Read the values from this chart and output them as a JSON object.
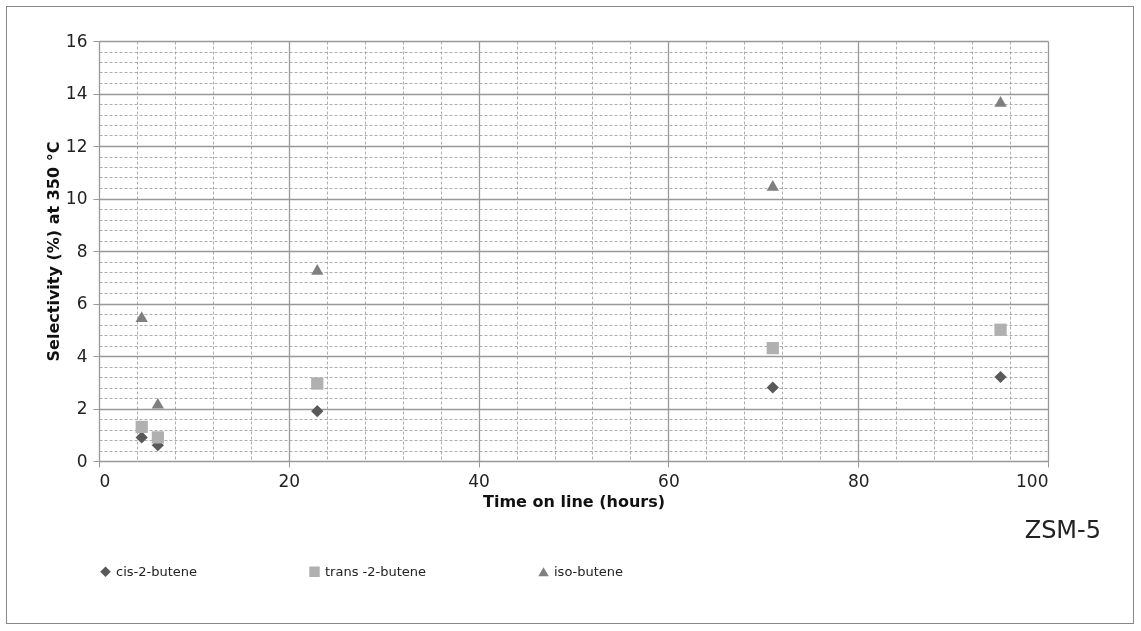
{
  "chart_data": {
    "type": "scatter",
    "xlabel": "Time on line (hours)",
    "ylabel": "Selectivity (%) at 350 °C",
    "annotations": [
      "ZSM-5"
    ],
    "xlim": [
      0,
      100
    ],
    "ylim": [
      0,
      16
    ],
    "xticks": [
      0,
      {
        "value": 4,
        "label": null
      },
      {
        "value": 8,
        "label": null
      },
      {
        "value": 12,
        "label": null
      },
      {
        "value": 16,
        "label": null
      },
      20,
      {
        "value": 24,
        "label": null
      },
      {
        "value": 28,
        "label": null
      },
      {
        "value": 32,
        "label": null
      },
      {
        "value": 36,
        "label": null
      },
      40,
      {
        "value": 44,
        "label": null
      },
      {
        "value": 48,
        "label": null
      },
      {
        "value": 52,
        "label": null
      },
      {
        "value": 56,
        "label": null
      },
      60,
      {
        "value": 64,
        "label": null
      },
      {
        "value": 68,
        "label": null
      },
      {
        "value": 72,
        "label": null
      },
      {
        "value": 76,
        "label": null
      },
      80,
      {
        "value": 84,
        "label": null
      },
      {
        "value": 88,
        "label": null
      },
      {
        "value": 92,
        "label": null
      },
      {
        "value": 96,
        "label": null
      },
      100
    ],
    "yticks": [
      0,
      {
        "value": 0.4,
        "label": null
      },
      {
        "value": 0.8,
        "label": null
      },
      {
        "value": 1.2,
        "label": null
      },
      {
        "value": 1.6,
        "label": null
      },
      2,
      {
        "value": 2.4,
        "label": null
      },
      {
        "value": 2.8,
        "label": null
      },
      {
        "value": 3.2,
        "label": null
      },
      {
        "value": 3.6,
        "label": null
      },
      4,
      {
        "value": 4.4,
        "label": null
      },
      {
        "value": 4.8,
        "label": null
      },
      {
        "value": 5.2,
        "label": null
      },
      {
        "value": 5.6,
        "label": null
      },
      6,
      {
        "value": 6.4,
        "label": null
      },
      {
        "value": 6.8,
        "label": null
      },
      {
        "value": 7.2,
        "label": null
      },
      {
        "value": 7.6,
        "label": null
      },
      8,
      {
        "value": 8.4,
        "label": null
      },
      {
        "value": 8.8,
        "label": null
      },
      {
        "value": 9.2,
        "label": null
      },
      {
        "value": 9.6,
        "label": null
      },
      10,
      {
        "value": 10.4,
        "label": null
      },
      {
        "value": 10.8,
        "label": null
      },
      {
        "value": 11.2,
        "label": null
      },
      {
        "value": 11.6,
        "label": null
      },
      12,
      {
        "value": 12.4,
        "label": null
      },
      {
        "value": 12.8,
        "label": null
      },
      {
        "value": 13.2,
        "label": null
      },
      {
        "value": 13.6,
        "label": null
      },
      14,
      {
        "value": 14.4,
        "label": null
      },
      {
        "value": 14.8,
        "label": null
      },
      {
        "value": 15.2,
        "label": null
      },
      {
        "value": 15.6,
        "label": null
      },
      16
    ],
    "grid": true,
    "legend": "bottom",
    "x": [
      4.5,
      6.2,
      23,
      71,
      95
    ],
    "series": [
      {
        "name": "cis-2-butene",
        "color": "#595959",
        "marker": "diamond",
        "values": [
          0.9,
          0.6,
          1.9,
          2.8,
          3.2
        ]
      },
      {
        "name": "trans -2-butene",
        "color": "#b0b0b0",
        "marker": "square",
        "values": [
          1.3,
          0.9,
          2.95,
          4.3,
          5.0
        ]
      },
      {
        "name": "iso-butene",
        "color": "#7f7f7f",
        "marker": "triangle",
        "values": [
          5.5,
          2.2,
          7.3,
          10.5,
          13.7
        ]
      }
    ]
  }
}
